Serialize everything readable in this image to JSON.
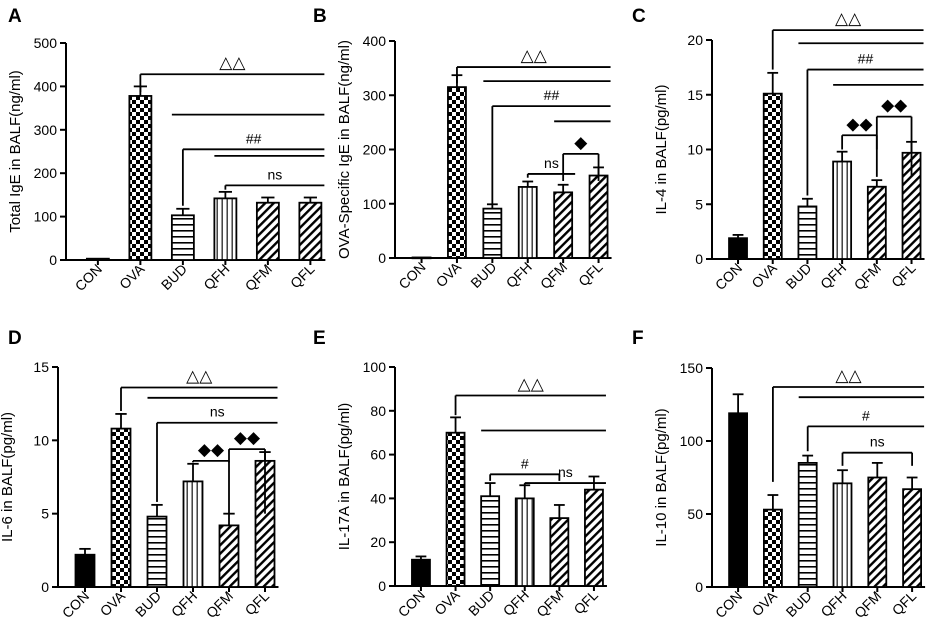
{
  "categories": [
    "CON",
    "OVA",
    "BUD",
    "QFH",
    "QFM",
    "QFL"
  ],
  "colors": {
    "ink": "#000000",
    "background": "#ffffff"
  },
  "chart_data": [
    {
      "panel": "A",
      "type": "bar",
      "ylabel": "Total IgE in BALF(ng/ml)",
      "ylim": [
        0,
        500
      ],
      "yticks": [
        0,
        100,
        200,
        300,
        400,
        500
      ],
      "categories": [
        "CON",
        "OVA",
        "BUD",
        "QFH",
        "QFM",
        "QFL"
      ],
      "values": [
        3,
        378,
        103,
        142,
        132,
        132
      ],
      "errors": [
        0,
        22,
        15,
        15,
        12,
        12
      ],
      "annotations": [
        {
          "label": "△△",
          "from": "OVA",
          "to": "QFL",
          "drop": "OVA",
          "level": 428,
          "stem": 387
        },
        {
          "label": "",
          "from": "BUD",
          "to": "QFL",
          "level": 335,
          "stem": 0
        },
        {
          "label": "##",
          "from": "BUD",
          "to": "QFL",
          "drop": "BUD",
          "level": 255,
          "stem": 125
        },
        {
          "label": "",
          "from": "QFH",
          "to": "QFL",
          "level": 240,
          "stem": 0
        },
        {
          "label": "ns",
          "from": "QFH",
          "to": "QFL",
          "drop": "QFH",
          "level": 172,
          "stem": 162
        }
      ]
    },
    {
      "panel": "B",
      "type": "bar",
      "ylabel": "OVA-Specific IgE in BALF(ng/ml)",
      "ylim": [
        0,
        400
      ],
      "yticks": [
        0,
        100,
        200,
        300,
        400
      ],
      "categories": [
        "CON",
        "OVA",
        "BUD",
        "QFH",
        "QFM",
        "QFL"
      ],
      "values": [
        1,
        315,
        91,
        131,
        121,
        152
      ],
      "errors": [
        0,
        22,
        8,
        10,
        14,
        15
      ],
      "annotations": [
        {
          "label": "△△",
          "from": "OVA",
          "to": "QFL",
          "drop": "OVA",
          "level": 352,
          "stem": 322
        },
        {
          "label": "",
          "from": "BUD",
          "to": "QFL",
          "level": 326,
          "stem": 0
        },
        {
          "label": "##",
          "from": "BUD",
          "to": "QFL",
          "drop": "BUD",
          "level": 280,
          "stem": 100
        },
        {
          "label": "",
          "from": "QFM",
          "to": "QFL",
          "level": 252,
          "stem": 0
        },
        {
          "label": "ns",
          "from": "QFH",
          "to": "QFM",
          "drop": "QFH",
          "level": 155,
          "stem": 148
        },
        {
          "label": "◆",
          "from": "QFM",
          "to": "QFL",
          "drop": "QFM",
          "dropEnd": "QFL",
          "level": 192,
          "stem": 142
        }
      ]
    },
    {
      "panel": "C",
      "type": "bar",
      "ylabel": "IL-4 in BALF(pg/ml)",
      "ylim": [
        0,
        20
      ],
      "yticks": [
        0,
        5,
        10,
        15,
        20
      ],
      "categories": [
        "CON",
        "OVA",
        "BUD",
        "QFH",
        "QFM",
        "QFL"
      ],
      "values": [
        1.9,
        15.1,
        4.8,
        8.9,
        6.6,
        9.7
      ],
      "errors": [
        0.3,
        1.9,
        0.7,
        0.9,
        0.6,
        1.0
      ],
      "annotations": [
        {
          "label": "△△",
          "from": "OVA",
          "to": "QFL",
          "drop": "OVA",
          "level": 20.9,
          "stem": 17.3
        },
        {
          "label": "",
          "from": "BUD",
          "to": "QFL",
          "level": 19.7,
          "stem": 0
        },
        {
          "label": "##",
          "from": "BUD",
          "to": "QFL",
          "drop": "BUD",
          "level": 17.3,
          "stem": 5.8
        },
        {
          "label": "",
          "from": "QFH",
          "to": "QFL",
          "level": 15.9,
          "stem": 0
        },
        {
          "label": "◆◆",
          "from": "QFH",
          "to": "QFM",
          "drop": "QFH",
          "dropEnd": "QFM",
          "level": 11.3,
          "stem": 10.0
        },
        {
          "label": "◆◆",
          "from": "QFM",
          "to": "QFL",
          "drop": "QFM",
          "dropEnd": "QFL",
          "level": 13.0,
          "stem": 7.5
        }
      ]
    },
    {
      "panel": "D",
      "type": "bar",
      "ylabel": "IL-6 in BALF(pg/ml)",
      "ylim": [
        0,
        15
      ],
      "yticks": [
        0,
        5,
        10,
        15
      ],
      "categories": [
        "CON",
        "OVA",
        "BUD",
        "QFH",
        "QFM",
        "QFL"
      ],
      "values": [
        2.2,
        10.8,
        4.8,
        7.2,
        4.2,
        8.6
      ],
      "errors": [
        0.4,
        1.0,
        0.8,
        1.2,
        0.8,
        0.6
      ],
      "annotations": [
        {
          "label": "△△",
          "from": "OVA",
          "to": "QFL",
          "drop": "OVA",
          "level": 13.6,
          "stem": 12.0
        },
        {
          "label": "",
          "from": "BUD",
          "to": "QFL",
          "level": 12.9,
          "stem": 0
        },
        {
          "label": "ns",
          "from": "BUD",
          "to": "QFL",
          "drop": "BUD",
          "level": 11.2,
          "stem": 5.8
        },
        {
          "label": "◆◆",
          "from": "QFH",
          "to": "QFM",
          "drop": "QFH",
          "dropEnd": "QFM",
          "level": 8.6,
          "stem": 8.5
        },
        {
          "label": "◆◆",
          "from": "QFM",
          "to": "QFL",
          "drop": "QFM",
          "dropEnd": "QFL",
          "level": 9.4,
          "stem": 5.0
        }
      ]
    },
    {
      "panel": "E",
      "type": "bar",
      "ylabel": "IL-17A in BALF(pg/ml)",
      "ylim": [
        0,
        100
      ],
      "yticks": [
        0,
        20,
        40,
        60,
        80,
        100
      ],
      "categories": [
        "CON",
        "OVA",
        "BUD",
        "QFH",
        "QFM",
        "QFL"
      ],
      "values": [
        12,
        70,
        41,
        40,
        31,
        44
      ],
      "errors": [
        1.5,
        7,
        6,
        6,
        6,
        6
      ],
      "annotations": [
        {
          "label": "△△",
          "from": "OVA",
          "to": "QFL",
          "drop": "OVA",
          "level": 87,
          "stem": 78
        },
        {
          "label": "",
          "from": "BUD",
          "to": "QFL",
          "level": 71,
          "stem": 0
        },
        {
          "label": "#",
          "from": "BUD",
          "to": "QFM",
          "drop": "BUD",
          "dropEnd": "QFM",
          "level": 51,
          "stem": 48
        },
        {
          "label": "ns",
          "from": "QFH",
          "to": "QFL",
          "drop": "QFH",
          "level": 47,
          "stem": 46
        }
      ]
    },
    {
      "panel": "F",
      "type": "bar",
      "ylabel": "IL-10 in BALF(pg/ml)",
      "ylim": [
        0,
        150
      ],
      "yticks": [
        0,
        50,
        100,
        150
      ],
      "categories": [
        "CON",
        "OVA",
        "BUD",
        "QFH",
        "QFM",
        "QFL"
      ],
      "values": [
        119,
        53,
        85,
        71,
        75,
        67
      ],
      "errors": [
        13,
        10,
        5,
        9,
        10,
        8
      ],
      "annotations": [
        {
          "label": "△△",
          "from": "OVA",
          "to": "QFL",
          "drop": "OVA",
          "level": 137,
          "stem": 72
        },
        {
          "label": "",
          "from": "BUD",
          "to": "QFL",
          "level": 130,
          "stem": 0
        },
        {
          "label": "#",
          "from": "BUD",
          "to": "QFL",
          "drop": "BUD",
          "level": 110,
          "stem": 93
        },
        {
          "label": "ns",
          "from": "QFH",
          "to": "QFL",
          "drop": "QFH",
          "dropEnd": "QFL",
          "level": 92,
          "stem": 83
        }
      ]
    }
  ]
}
